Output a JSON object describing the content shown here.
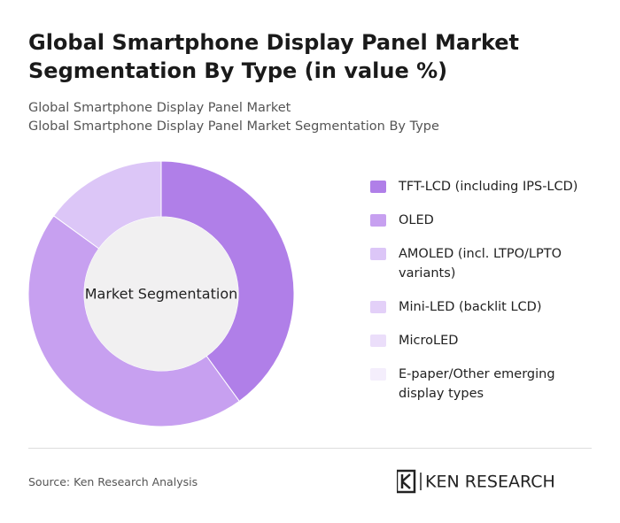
{
  "chart_data": {
    "type": "pie",
    "title": "Global Smartphone Display Panel Market Segmentation By Type (in value %)",
    "subtitle": "Global Smartphone Display Panel Market",
    "subtitle2": "Global Smartphone Display Panel Market Segmentation By Type",
    "center_label": "Market Segmentation",
    "categories": [
      "TFT-LCD (including IPS-LCD)",
      "OLED",
      "AMOLED (incl. LTPO/LPTO variants)",
      "Mini-LED (backlit LCD)",
      "MicroLED",
      "E-paper/Other emerging display types"
    ],
    "values": [
      40,
      45,
      15,
      0,
      0,
      0
    ],
    "colors": [
      "#b07fe8",
      "#c7a0f0",
      "#dcc6f7",
      "#e3d0f8",
      "#ebdefa",
      "#f4eefc"
    ],
    "source": "Source: Ken Research Analysis",
    "logo": "KEN RESEARCH"
  }
}
